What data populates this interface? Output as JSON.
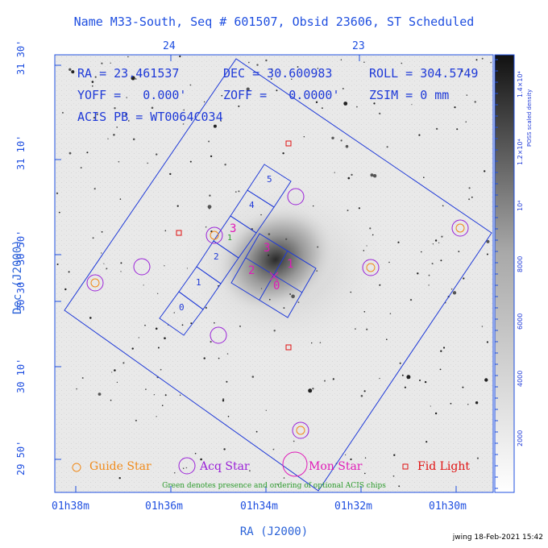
{
  "title": "Name M33-South, Seq # 601507, Obsid 23606, ST Scheduled",
  "x_axis_label": "RA (J2000)",
  "y_axis_label": "Dec (J2000)",
  "top_ticks": [
    "24",
    "23"
  ],
  "bottom_ticks": [
    "01h38m",
    "01h36m",
    "01h34m",
    "01h32m",
    "01h30m"
  ],
  "left_ticks": [
    "31 30'",
    "31 10'",
    "30 50'",
    "30 30'",
    "30 10'",
    "29 50'"
  ],
  "info": {
    "ra": "RA = 23.461537",
    "dec": "DEC = 30.600983",
    "roll": "ROLL = 304.5749",
    "yoff": "YOFF =   0.000'",
    "zoff": "ZOFF =   0.0000'",
    "zsim": "ZSIM = 0 mm",
    "acis_pb": "ACIS PB = WT0064C034"
  },
  "chip_labels": [
    "0",
    "1",
    "2",
    "3",
    "4",
    "5"
  ],
  "optional_chip_note": "1",
  "center_chip_labels": [
    "0",
    "1",
    "2",
    "3"
  ],
  "legend": {
    "guide_star": "Guide Star",
    "acq_star": "Acq Star",
    "mon_star": "Mon Star",
    "fid_light": "Fid Light",
    "note": "Green denotes presence and ordering of optional ACIS chips"
  },
  "colorbar": {
    "label": "POSS scaled density",
    "ticks": [
      "2000",
      "4000",
      "6000",
      "8000",
      "10⁴",
      "1.2×10⁴",
      "1.4×10⁴"
    ]
  },
  "footer": "jwing 18-Feb-2021 15:42",
  "colors": {
    "title": "#1f4fe0",
    "axis": "#2a62d8",
    "footprint": "#1f3ad8",
    "guide": "#f08a1a",
    "acq": "#9a20d8",
    "mon": "#e01cb8",
    "fid": "#e01010",
    "optional": "#2a9a2a"
  }
}
